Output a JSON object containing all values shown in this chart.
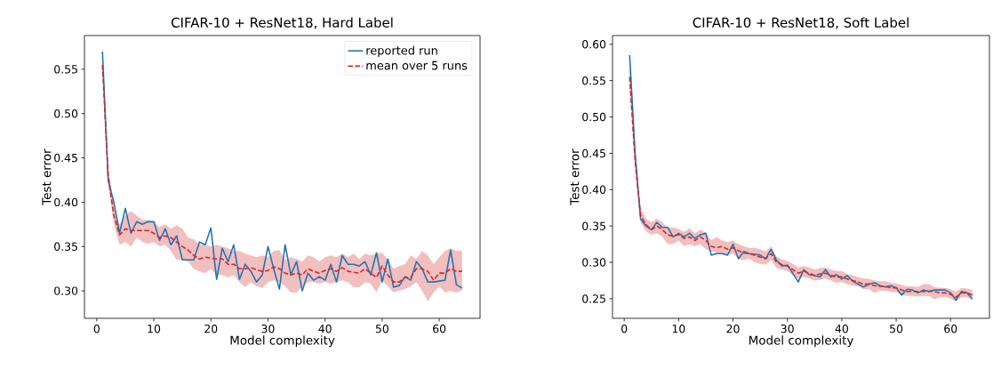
{
  "chart_data": [
    {
      "type": "line",
      "title": "CIFAR-10 + ResNet18, Hard Label",
      "xlabel": "Model complexity",
      "ylabel": "Test error",
      "xlim": [
        -2.15,
        67.15
      ],
      "ylim": [
        0.269,
        0.588
      ],
      "xticks": [
        0,
        10,
        20,
        30,
        40,
        50,
        60
      ],
      "yticks": [
        {
          "value": 0.3,
          "label": "0.30"
        },
        0.35,
        {
          "value": 0.4,
          "label": "0.40"
        },
        0.45,
        {
          "value": 0.5,
          "label": "0.50"
        },
        0.55
      ],
      "legend": "top right",
      "x": [
        1,
        2,
        3,
        4,
        5,
        6,
        7,
        8,
        9,
        10,
        11,
        12,
        13,
        14,
        15,
        16,
        17,
        18,
        19,
        20,
        21,
        22,
        23,
        24,
        25,
        26,
        27,
        28,
        29,
        30,
        31,
        32,
        33,
        34,
        35,
        36,
        37,
        38,
        39,
        40,
        41,
        42,
        43,
        44,
        45,
        46,
        47,
        48,
        49,
        50,
        51,
        52,
        53,
        54,
        55,
        56,
        57,
        58,
        59,
        60,
        61,
        62,
        63,
        64
      ],
      "series": [
        {
          "name": "reported run",
          "color": "#1f77b4",
          "line_style": "solid",
          "values": [
            0.57,
            0.425,
            0.4,
            0.365,
            0.393,
            0.365,
            0.378,
            0.375,
            0.378,
            0.378,
            0.357,
            0.37,
            0.352,
            0.362,
            0.335,
            0.335,
            0.335,
            0.355,
            0.352,
            0.371,
            0.313,
            0.348,
            0.333,
            0.352,
            0.313,
            0.33,
            0.322,
            0.31,
            0.318,
            0.35,
            0.325,
            0.302,
            0.352,
            0.318,
            0.333,
            0.3,
            0.32,
            0.312,
            0.316,
            0.312,
            0.33,
            0.31,
            0.34,
            0.33,
            0.33,
            0.328,
            0.333,
            0.318,
            0.343,
            0.31,
            0.336,
            0.304,
            0.306,
            0.316,
            0.312,
            0.333,
            0.325,
            0.31,
            0.31,
            0.311,
            0.312,
            0.346,
            0.307,
            0.303
          ]
        },
        {
          "name": "mean over 5 runs",
          "color": "#d62728",
          "line_style": "dashed",
          "values": [
            0.555,
            0.43,
            0.385,
            0.363,
            0.37,
            0.368,
            0.368,
            0.368,
            0.368,
            0.365,
            0.36,
            0.362,
            0.36,
            0.355,
            0.35,
            0.346,
            0.34,
            0.336,
            0.338,
            0.337,
            0.336,
            0.336,
            0.33,
            0.33,
            0.325,
            0.325,
            0.326,
            0.324,
            0.322,
            0.323,
            0.327,
            0.325,
            0.32,
            0.318,
            0.32,
            0.318,
            0.325,
            0.322,
            0.32,
            0.323,
            0.325,
            0.322,
            0.326,
            0.322,
            0.321,
            0.32,
            0.325,
            0.32,
            0.315,
            0.328,
            0.318,
            0.31,
            0.31,
            0.315,
            0.315,
            0.325,
            0.325,
            0.322,
            0.312,
            0.32,
            0.32,
            0.325,
            0.322,
            0.322
          ],
          "lower": [
            0.545,
            0.42,
            0.375,
            0.352,
            0.355,
            0.35,
            0.36,
            0.355,
            0.353,
            0.355,
            0.35,
            0.352,
            0.345,
            0.335,
            0.335,
            0.333,
            0.325,
            0.322,
            0.32,
            0.325,
            0.318,
            0.318,
            0.315,
            0.318,
            0.31,
            0.304,
            0.31,
            0.305,
            0.303,
            0.31,
            0.312,
            0.31,
            0.305,
            0.298,
            0.298,
            0.305,
            0.31,
            0.31,
            0.308,
            0.31,
            0.308,
            0.31,
            0.312,
            0.31,
            0.304,
            0.304,
            0.31,
            0.308,
            0.298,
            0.312,
            0.305,
            0.298,
            0.3,
            0.302,
            0.305,
            0.31,
            0.3,
            0.288,
            0.298,
            0.305,
            0.298,
            0.3,
            0.298,
            0.3
          ],
          "upper": [
            0.575,
            0.44,
            0.395,
            0.375,
            0.385,
            0.39,
            0.385,
            0.38,
            0.38,
            0.378,
            0.372,
            0.375,
            0.37,
            0.374,
            0.37,
            0.36,
            0.358,
            0.352,
            0.352,
            0.35,
            0.352,
            0.35,
            0.348,
            0.345,
            0.345,
            0.342,
            0.34,
            0.338,
            0.34,
            0.338,
            0.345,
            0.346,
            0.335,
            0.338,
            0.336,
            0.333,
            0.34,
            0.338,
            0.333,
            0.338,
            0.34,
            0.338,
            0.342,
            0.338,
            0.342,
            0.336,
            0.342,
            0.34,
            0.342,
            0.343,
            0.335,
            0.325,
            0.328,
            0.33,
            0.34,
            0.336,
            0.345,
            0.34,
            0.33,
            0.338,
            0.345,
            0.348,
            0.345,
            0.345
          ]
        }
      ]
    },
    {
      "type": "line",
      "title": "CIFAR-10 + ResNet18, Soft Label",
      "xlabel": "Model complexity",
      "ylabel": "Test error",
      "xlim": [
        -2.15,
        67.15
      ],
      "ylim": [
        0.223,
        0.612
      ],
      "xticks": [
        0,
        10,
        20,
        30,
        40,
        50,
        60
      ],
      "yticks": [
        0.25,
        {
          "value": 0.3,
          "label": "0.30"
        },
        0.35,
        {
          "value": 0.4,
          "label": "0.40"
        },
        0.45,
        {
          "value": 0.5,
          "label": "0.50"
        },
        0.55,
        {
          "value": 0.6,
          "label": "0.60"
        }
      ],
      "x": [
        1,
        2,
        3,
        4,
        5,
        6,
        7,
        8,
        9,
        10,
        11,
        12,
        13,
        14,
        15,
        16,
        17,
        18,
        19,
        20,
        21,
        22,
        23,
        24,
        25,
        26,
        27,
        28,
        29,
        30,
        31,
        32,
        33,
        34,
        35,
        36,
        37,
        38,
        39,
        40,
        41,
        42,
        43,
        44,
        45,
        46,
        47,
        48,
        49,
        50,
        51,
        52,
        53,
        54,
        55,
        56,
        57,
        58,
        59,
        60,
        61,
        62,
        63,
        64
      ],
      "series": [
        {
          "color": "#1f77b4",
          "line_style": "solid",
          "values": [
            0.585,
            0.45,
            0.36,
            0.35,
            0.345,
            0.355,
            0.348,
            0.348,
            0.335,
            0.34,
            0.335,
            0.34,
            0.333,
            0.338,
            0.34,
            0.31,
            0.312,
            0.312,
            0.31,
            0.325,
            0.305,
            0.315,
            0.312,
            0.311,
            0.31,
            0.305,
            0.318,
            0.303,
            0.295,
            0.296,
            0.285,
            0.273,
            0.29,
            0.283,
            0.282,
            0.28,
            0.29,
            0.28,
            0.283,
            0.277,
            0.282,
            0.274,
            0.27,
            0.266,
            0.27,
            0.272,
            0.268,
            0.266,
            0.268,
            0.265,
            0.255,
            0.263,
            0.262,
            0.258,
            0.262,
            0.26,
            0.262,
            0.262,
            0.262,
            0.258,
            0.248,
            0.26,
            0.258,
            0.25
          ]
        },
        {
          "color": "#d62728",
          "line_style": "dashed",
          "values": [
            0.555,
            0.44,
            0.365,
            0.352,
            0.345,
            0.35,
            0.345,
            0.338,
            0.336,
            0.338,
            0.333,
            0.335,
            0.33,
            0.335,
            0.33,
            0.322,
            0.32,
            0.322,
            0.318,
            0.32,
            0.316,
            0.313,
            0.312,
            0.31,
            0.307,
            0.305,
            0.312,
            0.3,
            0.297,
            0.295,
            0.29,
            0.285,
            0.288,
            0.285,
            0.282,
            0.284,
            0.285,
            0.282,
            0.28,
            0.28,
            0.277,
            0.275,
            0.273,
            0.27,
            0.27,
            0.268,
            0.267,
            0.267,
            0.265,
            0.265,
            0.262,
            0.26,
            0.26,
            0.26,
            0.26,
            0.26,
            0.26,
            0.258,
            0.258,
            0.256,
            0.252,
            0.258,
            0.258,
            0.255
          ],
          "lower": [
            0.54,
            0.43,
            0.355,
            0.343,
            0.338,
            0.34,
            0.335,
            0.325,
            0.325,
            0.33,
            0.322,
            0.325,
            0.322,
            0.325,
            0.318,
            0.315,
            0.313,
            0.312,
            0.31,
            0.312,
            0.305,
            0.303,
            0.305,
            0.3,
            0.298,
            0.297,
            0.303,
            0.292,
            0.29,
            0.288,
            0.282,
            0.277,
            0.28,
            0.278,
            0.275,
            0.276,
            0.278,
            0.275,
            0.272,
            0.273,
            0.27,
            0.268,
            0.267,
            0.263,
            0.263,
            0.258,
            0.261,
            0.261,
            0.259,
            0.259,
            0.255,
            0.254,
            0.254,
            0.253,
            0.254,
            0.254,
            0.249,
            0.252,
            0.252,
            0.25,
            0.246,
            0.252,
            0.252,
            0.248
          ],
          "upper": [
            0.595,
            0.455,
            0.375,
            0.36,
            0.355,
            0.36,
            0.355,
            0.348,
            0.348,
            0.346,
            0.342,
            0.347,
            0.34,
            0.345,
            0.34,
            0.33,
            0.335,
            0.33,
            0.328,
            0.33,
            0.325,
            0.322,
            0.32,
            0.32,
            0.318,
            0.315,
            0.322,
            0.308,
            0.304,
            0.302,
            0.298,
            0.293,
            0.295,
            0.293,
            0.29,
            0.292,
            0.293,
            0.29,
            0.288,
            0.288,
            0.284,
            0.282,
            0.28,
            0.278,
            0.277,
            0.275,
            0.274,
            0.274,
            0.272,
            0.271,
            0.269,
            0.267,
            0.267,
            0.266,
            0.27,
            0.27,
            0.266,
            0.265,
            0.265,
            0.263,
            0.26,
            0.265,
            0.264,
            0.262
          ]
        }
      ]
    }
  ]
}
